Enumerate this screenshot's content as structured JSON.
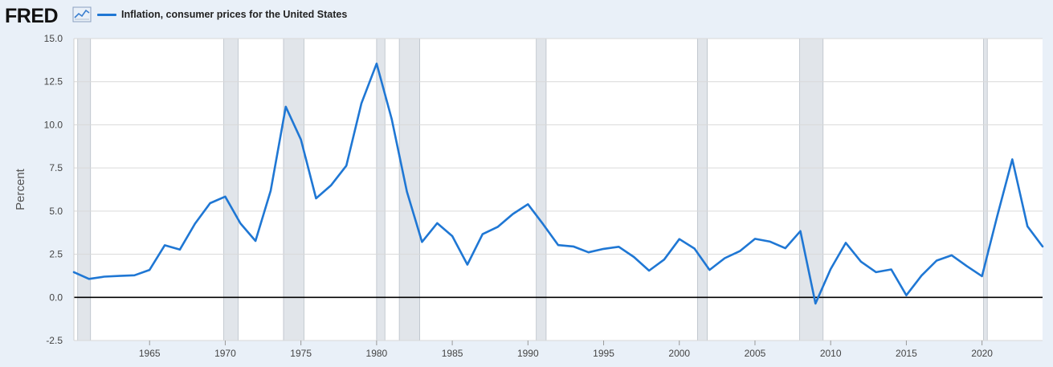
{
  "header": {
    "logo": "FRED",
    "series_label": "Inflation, consumer prices for the United States",
    "series_color": "#1f77d4"
  },
  "chart_data": {
    "type": "line",
    "ylabel": "Percent",
    "ylim": [
      -2.5,
      15.0
    ],
    "xlim": [
      1960,
      2024
    ],
    "yticks": [
      "15.0",
      "12.5",
      "10.0",
      "7.5",
      "5.0",
      "2.5",
      "0.0",
      "-2.5"
    ],
    "xticks": [
      "1965",
      "1970",
      "1975",
      "1980",
      "1985",
      "1990",
      "1995",
      "2000",
      "2005",
      "2010",
      "2015",
      "2020"
    ],
    "recessions": [
      [
        1960.25,
        1961.1
      ],
      [
        1969.9,
        1970.85
      ],
      [
        1973.85,
        1975.2
      ],
      [
        1980.0,
        1980.55
      ],
      [
        1981.5,
        1982.85
      ],
      [
        1990.55,
        1991.2
      ],
      [
        2001.2,
        2001.85
      ],
      [
        2007.95,
        2009.5
      ],
      [
        2020.1,
        2020.35
      ]
    ],
    "grid": true,
    "series": [
      {
        "name": "Inflation, consumer prices for the United States",
        "color": "#1f77d4",
        "x": [
          1960,
          1961,
          1962,
          1963,
          1964,
          1965,
          1966,
          1967,
          1968,
          1969,
          1970,
          1971,
          1972,
          1973,
          1974,
          1975,
          1976,
          1977,
          1978,
          1979,
          1980,
          1981,
          1982,
          1983,
          1984,
          1985,
          1986,
          1987,
          1988,
          1989,
          1990,
          1991,
          1992,
          1993,
          1994,
          1995,
          1996,
          1997,
          1998,
          1999,
          2000,
          2001,
          2002,
          2003,
          2004,
          2005,
          2006,
          2007,
          2008,
          2009,
          2010,
          2011,
          2012,
          2013,
          2014,
          2015,
          2016,
          2017,
          2018,
          2019,
          2020,
          2021,
          2022,
          2023,
          2024
        ],
        "values": [
          1.46,
          1.07,
          1.2,
          1.24,
          1.28,
          1.59,
          3.02,
          2.77,
          4.27,
          5.46,
          5.84,
          4.29,
          3.27,
          6.18,
          11.05,
          9.14,
          5.74,
          6.5,
          7.63,
          11.25,
          13.55,
          10.33,
          6.13,
          3.21,
          4.3,
          3.55,
          1.9,
          3.66,
          4.08,
          4.83,
          5.4,
          4.24,
          3.03,
          2.95,
          2.61,
          2.81,
          2.93,
          2.34,
          1.55,
          2.19,
          3.38,
          2.83,
          1.59,
          2.27,
          2.68,
          3.39,
          3.23,
          2.85,
          3.84,
          -0.36,
          1.64,
          3.16,
          2.07,
          1.46,
          1.62,
          0.12,
          1.26,
          2.13,
          2.44,
          1.81,
          1.23,
          4.7,
          8.0,
          4.12,
          2.95
        ]
      }
    ]
  }
}
